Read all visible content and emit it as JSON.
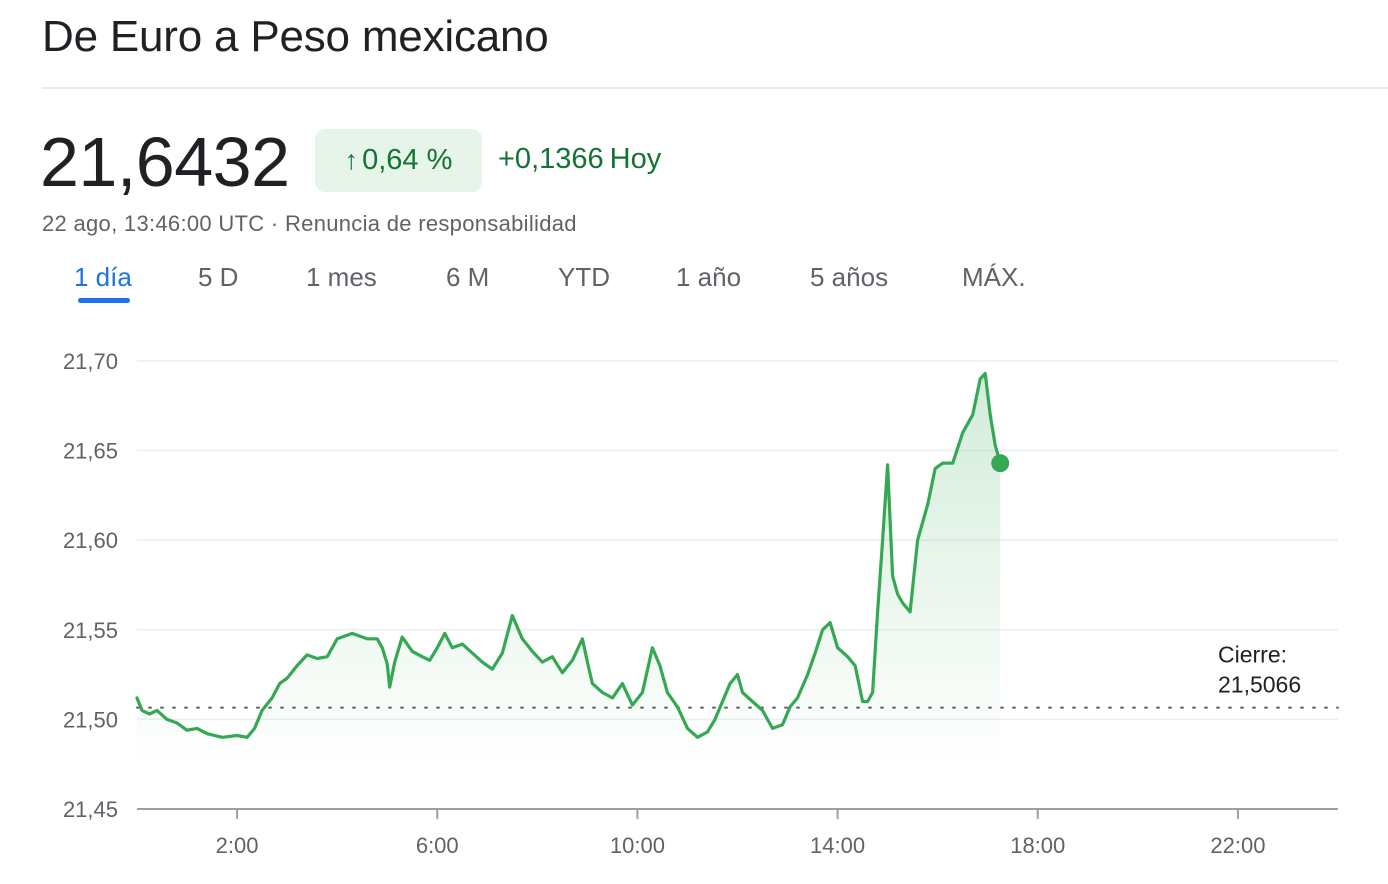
{
  "header": {
    "title": "De Euro a Peso mexicano"
  },
  "quote": {
    "price": "21,6432",
    "change_pct": "0,64 %",
    "change_arrow": "↑",
    "change_abs": "+0,1366",
    "change_period": "Hoy",
    "timestamp": "22 ago, 13:46:00 UTC",
    "separator": "·",
    "disclaimer": "Renuncia de responsabilidad"
  },
  "tabs": [
    {
      "label": "1 día",
      "active": true
    },
    {
      "label": "5 D",
      "active": false
    },
    {
      "label": "1 mes",
      "active": false
    },
    {
      "label": "6 M",
      "active": false
    },
    {
      "label": "YTD",
      "active": false
    },
    {
      "label": "1 año",
      "active": false
    },
    {
      "label": "5 años",
      "active": false
    },
    {
      "label": "MÁX.",
      "active": false
    }
  ],
  "colors": {
    "up": "#34a853",
    "up_text": "#137333",
    "accent": "#1a73e8"
  },
  "chart_data": {
    "type": "line",
    "x_unit": "hour of day (UTC)",
    "x_range": [
      0,
      24
    ],
    "y_range": [
      21.45,
      21.7
    ],
    "y_ticks": [
      "21,45",
      "21,50",
      "21,55",
      "21,60",
      "21,65",
      "21,70"
    ],
    "x_ticks": [
      "2:00",
      "6:00",
      "10:00",
      "14:00",
      "18:00",
      "22:00"
    ],
    "grid": true,
    "previous_close": {
      "label": "Cierre:",
      "value": "21,5066",
      "numeric": 21.5066
    },
    "series": [
      {
        "points": [
          [
            0.0,
            21.512
          ],
          [
            0.1,
            21.505
          ],
          [
            0.25,
            21.503
          ],
          [
            0.4,
            21.505
          ],
          [
            0.6,
            21.5
          ],
          [
            0.8,
            21.498
          ],
          [
            1.0,
            21.494
          ],
          [
            1.2,
            21.495
          ],
          [
            1.4,
            21.492
          ],
          [
            1.7,
            21.49
          ],
          [
            2.0,
            21.491
          ],
          [
            2.2,
            21.49
          ],
          [
            2.35,
            21.495
          ],
          [
            2.5,
            21.505
          ],
          [
            2.7,
            21.512
          ],
          [
            2.85,
            21.52
          ],
          [
            3.0,
            21.523
          ],
          [
            3.2,
            21.53
          ],
          [
            3.4,
            21.536
          ],
          [
            3.6,
            21.534
          ],
          [
            3.8,
            21.535
          ],
          [
            4.0,
            21.545
          ],
          [
            4.3,
            21.548
          ],
          [
            4.6,
            21.545
          ],
          [
            4.8,
            21.545
          ],
          [
            4.9,
            21.54
          ],
          [
            5.0,
            21.531
          ],
          [
            5.05,
            21.518
          ],
          [
            5.15,
            21.532
          ],
          [
            5.3,
            21.546
          ],
          [
            5.5,
            21.538
          ],
          [
            5.7,
            21.535
          ],
          [
            5.85,
            21.533
          ],
          [
            6.0,
            21.54
          ],
          [
            6.15,
            21.548
          ],
          [
            6.3,
            21.54
          ],
          [
            6.5,
            21.542
          ],
          [
            6.7,
            21.537
          ],
          [
            6.9,
            21.532
          ],
          [
            7.1,
            21.528
          ],
          [
            7.3,
            21.537
          ],
          [
            7.5,
            21.558
          ],
          [
            7.7,
            21.545
          ],
          [
            7.9,
            21.538
          ],
          [
            8.1,
            21.532
          ],
          [
            8.3,
            21.535
          ],
          [
            8.5,
            21.526
          ],
          [
            8.7,
            21.533
          ],
          [
            8.9,
            21.545
          ],
          [
            9.0,
            21.532
          ],
          [
            9.1,
            21.52
          ],
          [
            9.3,
            21.515
          ],
          [
            9.5,
            21.512
          ],
          [
            9.7,
            21.52
          ],
          [
            9.9,
            21.508
          ],
          [
            10.1,
            21.515
          ],
          [
            10.3,
            21.54
          ],
          [
            10.45,
            21.53
          ],
          [
            10.6,
            21.515
          ],
          [
            10.8,
            21.507
          ],
          [
            11.0,
            21.495
          ],
          [
            11.2,
            21.49
          ],
          [
            11.4,
            21.493
          ],
          [
            11.55,
            21.5
          ],
          [
            11.7,
            21.51
          ],
          [
            11.85,
            21.52
          ],
          [
            12.0,
            21.525
          ],
          [
            12.1,
            21.515
          ],
          [
            12.3,
            21.51
          ],
          [
            12.5,
            21.505
          ],
          [
            12.7,
            21.495
          ],
          [
            12.9,
            21.497
          ],
          [
            13.05,
            21.507
          ],
          [
            13.2,
            21.512
          ],
          [
            13.4,
            21.525
          ],
          [
            13.55,
            21.537
          ],
          [
            13.7,
            21.55
          ],
          [
            13.85,
            21.554
          ],
          [
            14.0,
            21.54
          ],
          [
            14.2,
            21.535
          ],
          [
            14.35,
            21.53
          ],
          [
            14.5,
            21.51
          ],
          [
            14.6,
            21.51
          ],
          [
            14.7,
            21.515
          ],
          [
            14.8,
            21.56
          ],
          [
            14.9,
            21.6
          ],
          [
            15.0,
            21.642
          ],
          [
            15.1,
            21.58
          ],
          [
            15.2,
            21.57
          ],
          [
            15.3,
            21.565
          ],
          [
            15.45,
            21.56
          ],
          [
            15.6,
            21.6
          ],
          [
            15.8,
            21.62
          ],
          [
            15.95,
            21.64
          ],
          [
            16.1,
            21.643
          ],
          [
            16.3,
            21.643
          ],
          [
            16.5,
            21.66
          ],
          [
            16.7,
            21.67
          ],
          [
            16.85,
            21.69
          ],
          [
            16.95,
            21.693
          ],
          [
            17.05,
            21.67
          ],
          [
            17.15,
            21.653
          ],
          [
            17.25,
            21.643
          ]
        ]
      }
    ]
  }
}
